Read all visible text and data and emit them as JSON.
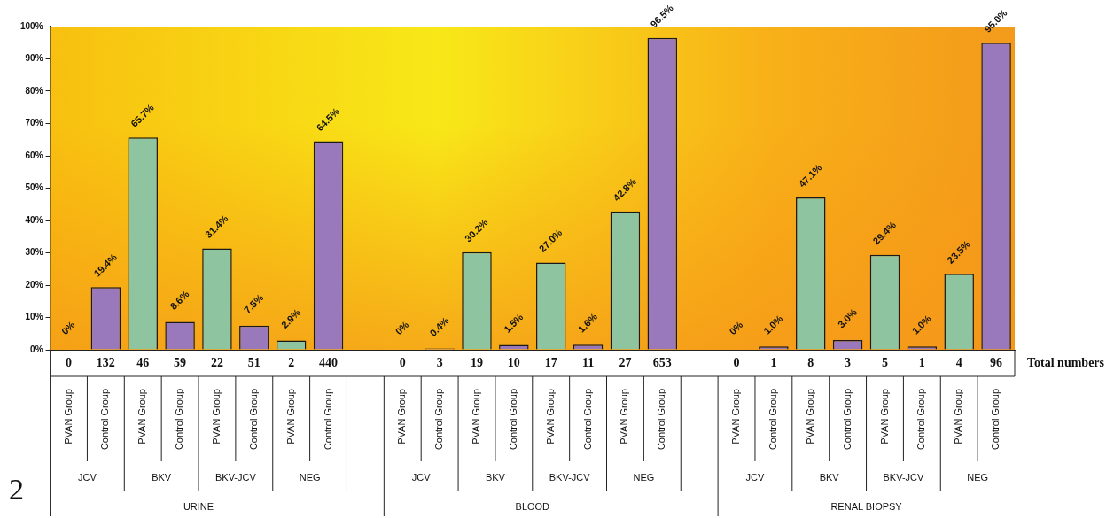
{
  "chart_data": {
    "type": "bar",
    "categories": [
      "PVAN Group",
      "Control Group",
      "PVAN Group",
      "Control Group",
      "PVAN Group",
      "Control Group",
      "PVAN Group",
      "Control Group",
      null,
      "PVAN Group",
      "Control Group",
      "PVAN Group",
      "Control Group",
      "PVAN Group",
      "Control Group",
      "PVAN Group",
      "Control Group",
      null,
      "PVAN Group",
      "Control Group",
      "PVAN Group",
      "Control Group",
      "PVAN Group",
      "Control Group",
      "PVAN Group",
      "Control Group"
    ],
    "values": [
      0,
      19.4,
      65.7,
      8.6,
      31.4,
      7.5,
      2.9,
      64.5,
      null,
      0,
      0.4,
      30.2,
      1.5,
      27.0,
      1.6,
      42.8,
      96.5,
      null,
      0,
      1.0,
      47.1,
      3.0,
      29.4,
      1.0,
      23.5,
      95.0
    ],
    "value_labels": [
      "0%",
      "19.4%",
      "65.7%",
      "8.6%",
      "31.4%",
      "7.5%",
      "2.9%",
      "64.5%",
      null,
      "0%",
      "0.4%",
      "30.2%",
      "1.5%",
      "27.0%",
      "1.6%",
      "42.8%",
      "96.5%",
      null,
      "0%",
      "1.0%",
      "47.1%",
      "3.0%",
      "29.4%",
      "1.0%",
      "23.5%",
      "95.0%"
    ],
    "colors": [
      "#8fc4a0",
      "#9a78bc",
      "#8fc4a0",
      "#9a78bc",
      "#8fc4a0",
      "#9a78bc",
      "#8fc4a0",
      "#9a78bc",
      null,
      "#8fc4a0",
      "#9a78bc",
      "#8fc4a0",
      "#9a78bc",
      "#8fc4a0",
      "#9a78bc",
      "#8fc4a0",
      "#9a78bc",
      null,
      "#8fc4a0",
      "#9a78bc",
      "#8fc4a0",
      "#9a78bc",
      "#8fc4a0",
      "#9a78bc",
      "#8fc4a0",
      "#9a78bc"
    ],
    "ylim": [
      0,
      100
    ],
    "yticks": [
      {
        "value": 0,
        "label": "0%"
      },
      {
        "value": 10,
        "label": "10%"
      },
      {
        "value": 20,
        "label": "20%"
      },
      {
        "value": 30,
        "label": "30%"
      },
      {
        "value": 40,
        "label": "40%"
      },
      {
        "value": 50,
        "label": "50%"
      },
      {
        "value": 60,
        "label": "60%"
      },
      {
        "value": 70,
        "label": "70%"
      },
      {
        "value": 80,
        "label": "80%"
      },
      {
        "value": 90,
        "label": "90%"
      },
      {
        "value": 100,
        "label": "100%"
      }
    ],
    "annotations": [
      "Total numbers",
      "0",
      "132",
      "46",
      "59",
      "22",
      "51",
      "2",
      "440",
      "0",
      "3",
      "19",
      "10",
      "17",
      "11",
      "27",
      "653",
      "0",
      "1",
      "8",
      "3",
      "5",
      "1",
      "4",
      "96",
      "JCV",
      "BKV",
      "BKV-JCV",
      "NEG",
      "JCV",
      "BKV",
      "BKV-JCV",
      "NEG",
      "JCV",
      "BKV",
      "BKV-JCV",
      "NEG",
      "URINE",
      "BLOOD",
      "RENAL BIOPSY",
      "2"
    ],
    "legend": false
  }
}
